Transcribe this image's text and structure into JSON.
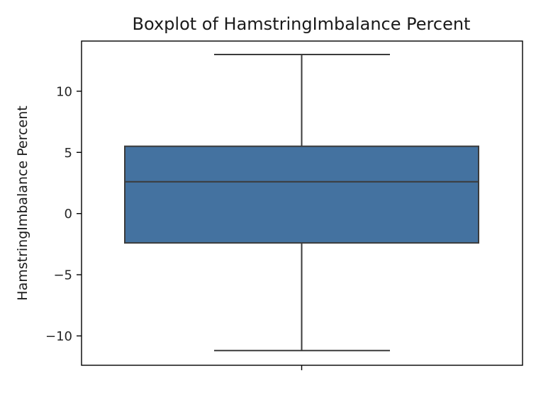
{
  "chart_data": {
    "type": "box",
    "title": "Boxplot of HamstringImbalance Percent",
    "xlabel": "",
    "ylabel": "HamstringImbalance Percent",
    "ylim": [
      -12.4,
      14.1
    ],
    "yticks": [
      -10,
      -5,
      0,
      5,
      10
    ],
    "ytick_labels": [
      "−10",
      "−5",
      "0",
      "5",
      "10"
    ],
    "grid": false,
    "legend": "none",
    "series": [
      {
        "whisker_low": -11.2,
        "q1": -2.4,
        "median": 2.6,
        "q3": 5.5,
        "whisker_high": 13.0
      }
    ],
    "colors": {
      "box_fill": "#4472a0",
      "line": "#3b3b3b",
      "axis": "#000000"
    }
  }
}
